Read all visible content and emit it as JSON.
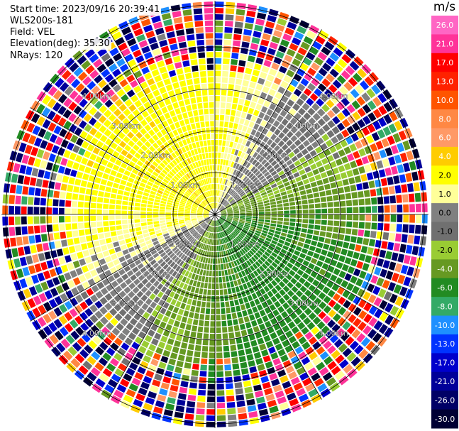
{
  "header": {
    "start_time": "Start time: 2023/09/16 20:39:41",
    "instrument": "WLS200s-181",
    "field": "Field: VEL",
    "elevation": "Elevation(deg): 35.30",
    "nrays": "NRays: 120"
  },
  "colorbar": {
    "unit": "m/s",
    "ticks": [
      "26.0",
      "21.0",
      "17.0",
      "13.0",
      "10.0",
      "8.0",
      "6.0",
      "4.0",
      "2.0",
      "1.0",
      "0.0",
      "-1.0",
      "-2.0",
      "-4.0",
      "-6.0",
      "-8.0",
      "-10.0",
      "-13.0",
      "-17.0",
      "-21.0",
      "-26.0",
      "-30.0"
    ],
    "colors": [
      "#ff66c4",
      "#ff3399",
      "#ff0000",
      "#ff2200",
      "#ff5500",
      "#ff8844",
      "#ff9966",
      "#ffcc00",
      "#ffff00",
      "#ffff99",
      "#808080",
      "#707070",
      "#99cc33",
      "#669922",
      "#228b22",
      "#33aa66",
      "#1e90ff",
      "#0033ff",
      "#0000cc",
      "#000099",
      "#000066",
      "#000033"
    ]
  },
  "chart_data": {
    "type": "heatmap",
    "plot_kind": "PPI scan (polar)",
    "field": "VEL",
    "unit": "m/s",
    "nrays": 120,
    "elevation_deg": 35.3,
    "range_ring_labels": [
      "1.00km",
      "2.00km",
      "3.00km",
      "4.00km"
    ],
    "range_rings_km": [
      1,
      2,
      3,
      4,
      5
    ],
    "max_range_km": 5.1,
    "value_range": [
      -30,
      26
    ],
    "pattern": {
      "toward_sector_azimuth_deg": 315,
      "toward_value_ms": 3.5,
      "away_sector_azimuth_deg": 135,
      "away_value_ms": -5.0,
      "noisy_beyond_km": 3.3
    }
  }
}
